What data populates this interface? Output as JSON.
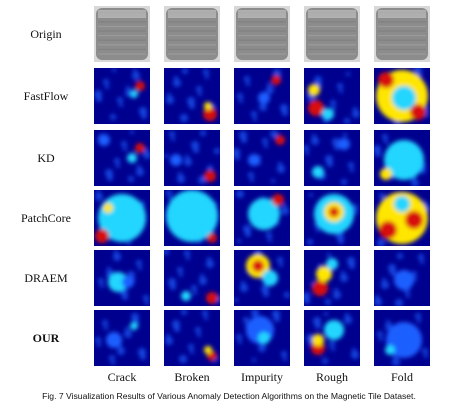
{
  "rows": [
    {
      "label": "Origin",
      "bold": false
    },
    {
      "label": "FastFlow",
      "bold": false
    },
    {
      "label": "KD",
      "bold": false
    },
    {
      "label": "PatchCore",
      "bold": false
    },
    {
      "label": "DRAEM",
      "bold": false
    },
    {
      "label": "OUR",
      "bold": true
    }
  ],
  "columns": [
    "Crack",
    "Broken",
    "Impurity",
    "Rough",
    "Fold"
  ],
  "caption": "Fig. 7 Visualization Results of Various Anomaly Detection Algorithms on the Magnetic Tile Dataset.",
  "colors": {
    "heat_low": "#00008f",
    "heat_mid": "#1e5fff",
    "heat_cyan": "#22d6ff",
    "heat_yellow": "#ffe600",
    "heat_high": "#d81010",
    "tile_gray": "#8c8c8c"
  }
}
